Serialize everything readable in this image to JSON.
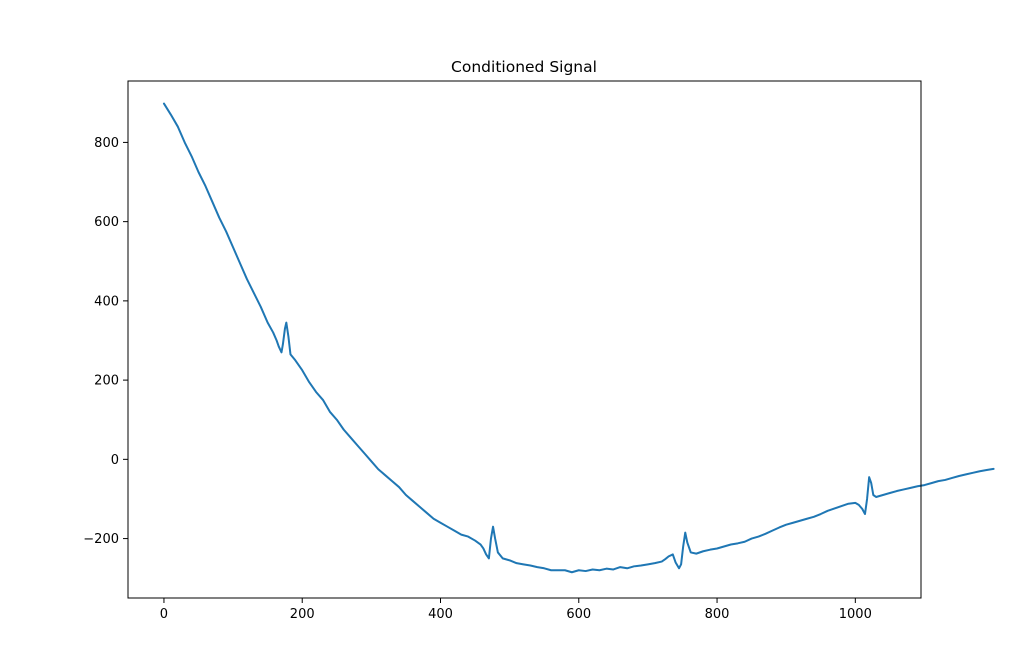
{
  "chart_data": {
    "type": "line",
    "title": "Conditioned Signal",
    "xlabel": "",
    "ylabel": "",
    "xlim": [
      -52,
      1095
    ],
    "ylim": [
      -350,
      955
    ],
    "xticks": [
      0,
      200,
      400,
      600,
      800,
      1000
    ],
    "yticks": [
      -200,
      0,
      200,
      400,
      600,
      800
    ],
    "xtick_labels": [
      "0",
      "200",
      "400",
      "600",
      "800",
      "1000"
    ],
    "ytick_labels": [
      "−200",
      "0",
      "200",
      "400",
      "600",
      "800"
    ],
    "grid": false,
    "legend": "none",
    "series": [
      {
        "color": "#1f77b4",
        "points": [
          [
            0,
            898
          ],
          [
            10,
            870
          ],
          [
            20,
            840
          ],
          [
            30,
            800
          ],
          [
            40,
            765
          ],
          [
            50,
            725
          ],
          [
            60,
            690
          ],
          [
            70,
            650
          ],
          [
            80,
            610
          ],
          [
            90,
            575
          ],
          [
            100,
            535
          ],
          [
            110,
            495
          ],
          [
            120,
            455
          ],
          [
            130,
            420
          ],
          [
            140,
            385
          ],
          [
            150,
            345
          ],
          [
            158,
            320
          ],
          [
            163,
            300
          ],
          [
            166,
            285
          ],
          [
            170,
            270
          ],
          [
            172,
            290
          ],
          [
            175,
            330
          ],
          [
            177,
            345
          ],
          [
            180,
            310
          ],
          [
            183,
            265
          ],
          [
            190,
            250
          ],
          [
            200,
            225
          ],
          [
            210,
            195
          ],
          [
            220,
            170
          ],
          [
            230,
            150
          ],
          [
            240,
            120
          ],
          [
            250,
            100
          ],
          [
            260,
            75
          ],
          [
            270,
            55
          ],
          [
            280,
            35
          ],
          [
            290,
            15
          ],
          [
            300,
            -5
          ],
          [
            310,
            -25
          ],
          [
            320,
            -40
          ],
          [
            330,
            -55
          ],
          [
            340,
            -70
          ],
          [
            350,
            -90
          ],
          [
            360,
            -105
          ],
          [
            370,
            -120
          ],
          [
            380,
            -135
          ],
          [
            390,
            -150
          ],
          [
            400,
            -160
          ],
          [
            410,
            -170
          ],
          [
            420,
            -180
          ],
          [
            430,
            -190
          ],
          [
            440,
            -195
          ],
          [
            450,
            -205
          ],
          [
            458,
            -215
          ],
          [
            462,
            -225
          ],
          [
            466,
            -240
          ],
          [
            470,
            -250
          ],
          [
            473,
            -200
          ],
          [
            476,
            -170
          ],
          [
            479,
            -200
          ],
          [
            483,
            -235
          ],
          [
            490,
            -250
          ],
          [
            500,
            -255
          ],
          [
            510,
            -262
          ],
          [
            520,
            -265
          ],
          [
            530,
            -268
          ],
          [
            540,
            -272
          ],
          [
            550,
            -275
          ],
          [
            560,
            -280
          ],
          [
            570,
            -280
          ],
          [
            580,
            -280
          ],
          [
            590,
            -285
          ],
          [
            600,
            -280
          ],
          [
            610,
            -282
          ],
          [
            620,
            -278
          ],
          [
            630,
            -280
          ],
          [
            640,
            -276
          ],
          [
            650,
            -278
          ],
          [
            660,
            -272
          ],
          [
            670,
            -275
          ],
          [
            680,
            -270
          ],
          [
            690,
            -268
          ],
          [
            700,
            -265
          ],
          [
            710,
            -262
          ],
          [
            720,
            -258
          ],
          [
            725,
            -252
          ],
          [
            730,
            -245
          ],
          [
            736,
            -240
          ],
          [
            740,
            -260
          ],
          [
            745,
            -275
          ],
          [
            748,
            -265
          ],
          [
            751,
            -220
          ],
          [
            754,
            -185
          ],
          [
            757,
            -210
          ],
          [
            762,
            -235
          ],
          [
            770,
            -238
          ],
          [
            780,
            -232
          ],
          [
            790,
            -228
          ],
          [
            800,
            -225
          ],
          [
            810,
            -220
          ],
          [
            820,
            -215
          ],
          [
            830,
            -212
          ],
          [
            840,
            -208
          ],
          [
            850,
            -200
          ],
          [
            860,
            -195
          ],
          [
            870,
            -188
          ],
          [
            880,
            -180
          ],
          [
            890,
            -172
          ],
          [
            900,
            -165
          ],
          [
            910,
            -160
          ],
          [
            920,
            -155
          ],
          [
            930,
            -150
          ],
          [
            940,
            -145
          ],
          [
            950,
            -138
          ],
          [
            960,
            -130
          ],
          [
            970,
            -124
          ],
          [
            980,
            -118
          ],
          [
            990,
            -112
          ],
          [
            1000,
            -110
          ],
          [
            1005,
            -115
          ],
          [
            1010,
            -125
          ],
          [
            1014,
            -138
          ],
          [
            1017,
            -100
          ],
          [
            1020,
            -45
          ],
          [
            1023,
            -60
          ],
          [
            1026,
            -90
          ],
          [
            1030,
            -95
          ],
          [
            1040,
            -90
          ],
          [
            1050,
            -85
          ],
          [
            1060,
            -80
          ],
          [
            1070,
            -76
          ],
          [
            1080,
            -72
          ],
          [
            1090,
            -68
          ],
          [
            1100,
            -65
          ],
          [
            1110,
            -60
          ],
          [
            1120,
            -55
          ],
          [
            1130,
            -52
          ],
          [
            1140,
            -47
          ],
          [
            1150,
            -42
          ],
          [
            1160,
            -38
          ],
          [
            1170,
            -34
          ],
          [
            1180,
            -30
          ],
          [
            1190,
            -27
          ],
          [
            1200,
            -24
          ]
        ]
      }
    ]
  }
}
